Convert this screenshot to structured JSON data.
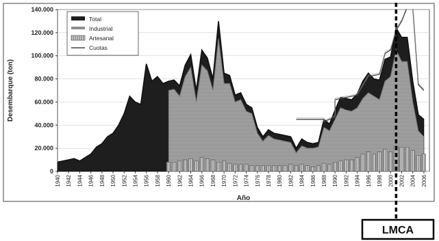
{
  "chart_data": {
    "type": "area",
    "title": "",
    "xlabel": "Año",
    "ylabel": "Desembarque (ton)",
    "xlim": [
      1940,
      2007
    ],
    "ylim": [
      0,
      140000
    ],
    "y_ticks": [
      0,
      20000,
      40000,
      60000,
      80000,
      100000,
      120000,
      140000
    ],
    "y_tick_labels": [
      "0",
      "20.000",
      "40.000",
      "60.000",
      "80.000",
      "100.000",
      "120.000",
      "140.000"
    ],
    "x_ticks": [
      1940,
      1942,
      1944,
      1946,
      1948,
      1950,
      1952,
      1954,
      1956,
      1958,
      1960,
      1962,
      1964,
      1966,
      1968,
      1970,
      1972,
      1974,
      1976,
      1978,
      1980,
      1982,
      1984,
      1986,
      1988,
      1990,
      1992,
      1994,
      1996,
      1998,
      2000,
      2002,
      2004,
      2006
    ],
    "legend": {
      "placement": "top-left",
      "entries": [
        "Total",
        "Industrial",
        "Artesanal",
        "Cuotas"
      ]
    },
    "colors": {
      "total": "#1e1e1e",
      "industrial": "#8c8c8c",
      "artesanal": "#d8d8d8",
      "cuotas": "#444444",
      "lmca": "#000000"
    },
    "series": [
      {
        "name": "Total",
        "x": [
          1940,
          1941,
          1942,
          1943,
          1944,
          1945,
          1946,
          1947,
          1948,
          1949,
          1950,
          1951,
          1952,
          1953,
          1954,
          1955,
          1956,
          1957,
          1958,
          1959,
          1960,
          1961,
          1962,
          1963,
          1964,
          1965,
          1966,
          1967,
          1968,
          1969,
          1970,
          1971,
          1972,
          1973,
          1974,
          1975,
          1976,
          1977,
          1978,
          1979,
          1980,
          1981,
          1982,
          1983,
          1984,
          1985,
          1986,
          1987,
          1988,
          1989,
          1990,
          1991,
          1992,
          1993,
          1994,
          1995,
          1996,
          1997,
          1998,
          1999,
          2000,
          2001,
          2002,
          2003,
          2004,
          2005,
          2006
        ],
        "values": [
          8000,
          9000,
          10000,
          11000,
          9000,
          12000,
          15000,
          21000,
          24000,
          30000,
          33000,
          40000,
          50000,
          65000,
          60000,
          58000,
          93000,
          78000,
          82000,
          76000,
          78000,
          79000,
          74000,
          92000,
          101000,
          70000,
          105000,
          98000,
          80000,
          130000,
          85000,
          83000,
          66000,
          68000,
          58000,
          55000,
          38000,
          30000,
          36000,
          33000,
          32000,
          31000,
          30000,
          20000,
          28000,
          25000,
          24000,
          25000,
          45000,
          41000,
          53000,
          64000,
          63000,
          62000,
          67000,
          78000,
          85000,
          80000,
          79000,
          97000,
          99000,
          124000,
          116000,
          116000,
          78000,
          49000,
          45000
        ]
      },
      {
        "name": "Industrial",
        "x": [
          1960,
          1961,
          1962,
          1963,
          1964,
          1965,
          1966,
          1967,
          1968,
          1969,
          1970,
          1971,
          1972,
          1973,
          1974,
          1975,
          1976,
          1977,
          1978,
          1979,
          1980,
          1981,
          1982,
          1983,
          1984,
          1985,
          1986,
          1987,
          1988,
          1989,
          1990,
          1991,
          1992,
          1993,
          1994,
          1995,
          1996,
          1997,
          1998,
          1999,
          2000,
          2001,
          2002,
          2003,
          2004,
          2005,
          2006
        ],
        "values": [
          70000,
          71000,
          65000,
          82000,
          90000,
          60000,
          92000,
          87000,
          70000,
          115000,
          76000,
          76000,
          60000,
          62000,
          52000,
          50000,
          33000,
          26000,
          31000,
          28000,
          27000,
          26000,
          25000,
          16000,
          22000,
          20000,
          20000,
          21000,
          38000,
          35000,
          45000,
          55000,
          53000,
          52000,
          55000,
          63000,
          68000,
          65000,
          62000,
          78000,
          82000,
          105000,
          95000,
          95000,
          60000,
          35000,
          30000
        ]
      },
      {
        "name": "Artesanal",
        "x": [
          1960,
          1961,
          1962,
          1963,
          1964,
          1965,
          1966,
          1967,
          1968,
          1969,
          1970,
          1971,
          1972,
          1973,
          1974,
          1975,
          1976,
          1977,
          1978,
          1979,
          1980,
          1981,
          1982,
          1983,
          1984,
          1985,
          1986,
          1987,
          1988,
          1989,
          1990,
          1991,
          1992,
          1993,
          1994,
          1995,
          1996,
          1997,
          1998,
          1999,
          2000,
          2001,
          2002,
          2003,
          2004,
          2005,
          2006
        ],
        "values": [
          8000,
          8000,
          9000,
          10000,
          11000,
          9000,
          12000,
          11000,
          10000,
          8000,
          9000,
          7000,
          6000,
          6000,
          6000,
          5000,
          5000,
          5000,
          5000,
          5000,
          5000,
          5000,
          6000,
          5000,
          6000,
          5000,
          4000,
          5000,
          7000,
          6000,
          8000,
          9000,
          10000,
          10000,
          12000,
          15000,
          17000,
          15000,
          17000,
          19000,
          17000,
          22000,
          21000,
          21000,
          18000,
          14000,
          15000
        ]
      },
      {
        "name": "Cuotas",
        "x": [
          1983,
          1988,
          1988,
          1990,
          1990,
          1992,
          1994,
          1996,
          1998,
          1999,
          2000,
          2001,
          2002,
          2003,
          2004,
          2005,
          2006
        ],
        "values": [
          45000,
          45000,
          43000,
          47000,
          62000,
          64000,
          66000,
          82000,
          84000,
          102000,
          105000,
          122000,
          130000,
          142000,
          142000,
          75000,
          70000
        ]
      }
    ],
    "annotations": [
      {
        "type": "vline",
        "x": 2001,
        "label": "LMCA"
      }
    ]
  }
}
